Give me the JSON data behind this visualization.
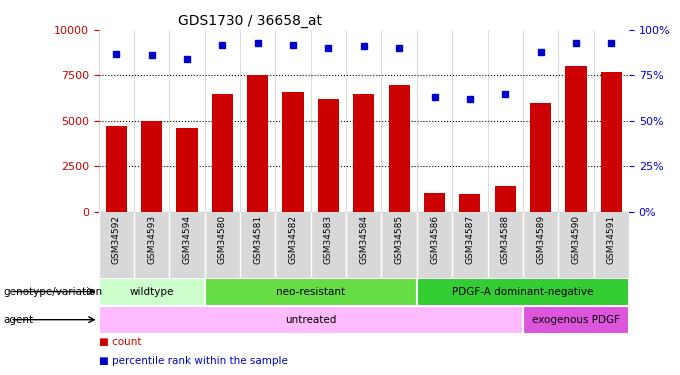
{
  "title": "GDS1730 / 36658_at",
  "samples": [
    "GSM34592",
    "GSM34593",
    "GSM34594",
    "GSM34580",
    "GSM34581",
    "GSM34582",
    "GSM34583",
    "GSM34584",
    "GSM34585",
    "GSM34586",
    "GSM34587",
    "GSM34588",
    "GSM34589",
    "GSM34590",
    "GSM34591"
  ],
  "counts": [
    4700,
    5000,
    4600,
    6500,
    7500,
    6600,
    6200,
    6500,
    7000,
    1050,
    1000,
    1400,
    6000,
    8000,
    7700
  ],
  "percentile": [
    87,
    86,
    84,
    92,
    93,
    92,
    90,
    91,
    90,
    63,
    62,
    65,
    88,
    93,
    93
  ],
  "ylim_left": [
    0,
    10000
  ],
  "ylim_right": [
    0,
    100
  ],
  "yticks_left": [
    0,
    2500,
    5000,
    7500,
    10000
  ],
  "yticks_right": [
    0,
    25,
    50,
    75,
    100
  ],
  "bar_color": "#CC0000",
  "dot_color": "#0000CC",
  "bg_color": "#ffffff",
  "sample_strip_color": "#d8d8d8",
  "groups_genotype": [
    {
      "label": "wildtype",
      "start": 0,
      "end": 3,
      "color": "#ccffcc"
    },
    {
      "label": "neo-resistant",
      "start": 3,
      "end": 9,
      "color": "#66dd44"
    },
    {
      "label": "PDGF-A dominant-negative",
      "start": 9,
      "end": 15,
      "color": "#33cc33"
    }
  ],
  "groups_agent": [
    {
      "label": "untreated",
      "start": 0,
      "end": 12,
      "color": "#ffbbff"
    },
    {
      "label": "exogenous PDGF",
      "start": 12,
      "end": 15,
      "color": "#dd55dd"
    }
  ],
  "legend_items": [
    {
      "label": "count",
      "color": "#CC0000"
    },
    {
      "label": "percentile rank within the sample",
      "color": "#0000CC"
    }
  ],
  "label_genotype": "genotype/variation",
  "label_agent": "agent"
}
